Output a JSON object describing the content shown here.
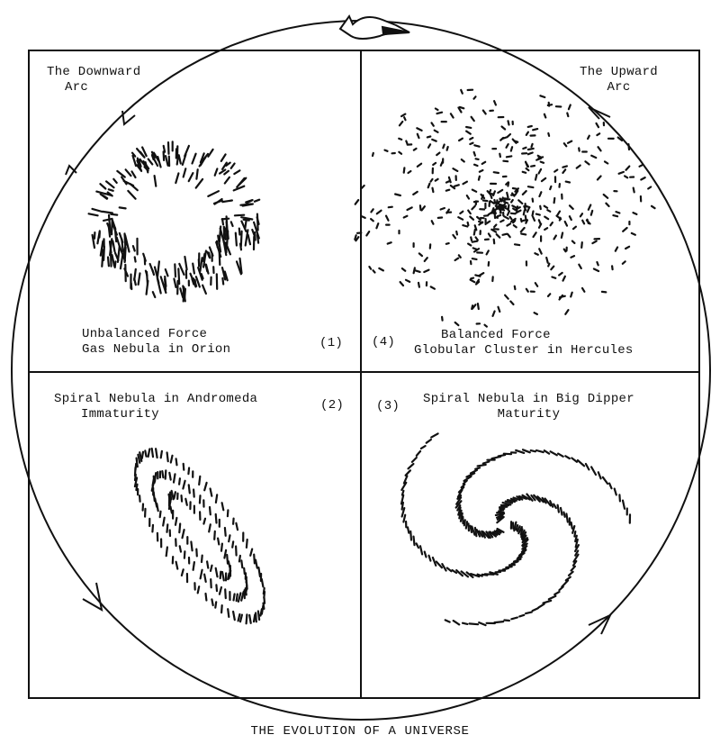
{
  "title": "THE EVOLUTION OF A UNIVERSE",
  "arcs": {
    "downward": [
      "The Downward",
      "Arc"
    ],
    "upward": [
      "The Upward",
      "Arc"
    ]
  },
  "quadrants": [
    {
      "number": "(1)",
      "lines": [
        "Unbalanced Force",
        "Gas Nebula in Orion"
      ]
    },
    {
      "number": "(2)",
      "lines": [
        "Spiral Nebula in Andromeda",
        "Immaturity"
      ]
    },
    {
      "number": "(3)",
      "lines": [
        "Spiral Nebula in Big Dipper",
        "Maturity"
      ]
    },
    {
      "number": "(4)",
      "lines": [
        "Balanced Force",
        "Globular Cluster in Hercules"
      ]
    }
  ],
  "colors": {
    "ink": "#111111",
    "paper": "#ffffff"
  }
}
